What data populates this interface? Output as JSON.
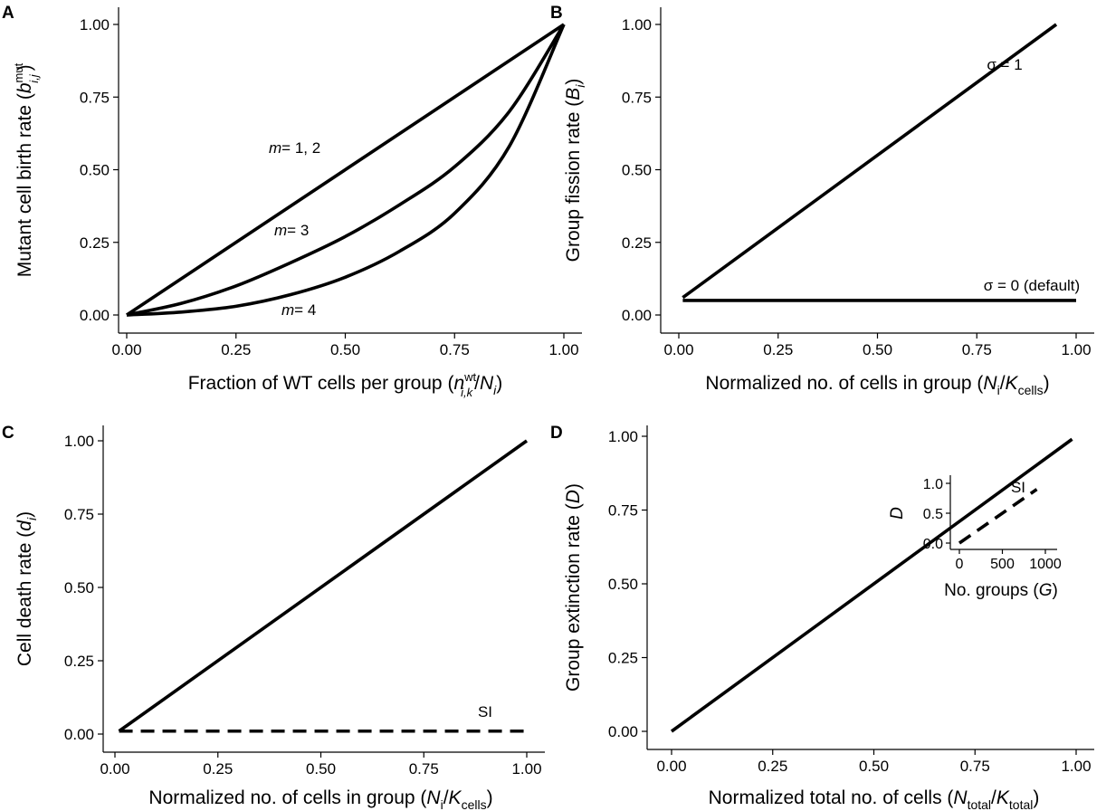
{
  "figure": {
    "panels": [
      {
        "letter": "A",
        "xlabel_parts": [
          "Fraction of WT cells per group (",
          "n",
          "wt",
          "i,k",
          "/",
          "N",
          "i",
          ")"
        ],
        "ylabel_parts": [
          "Mutant cell birth rate (",
          "b",
          "mut",
          "i,j",
          ")"
        ],
        "x_ticks": [
          "0.00",
          "0.25",
          "0.50",
          "0.75",
          "1.00"
        ],
        "y_ticks": [
          "0.00",
          "0.25",
          "0.50",
          "0.75",
          "1.00"
        ],
        "annotations": [
          {
            "italic": "m",
            "rest": "= 1, 2"
          },
          {
            "italic": "m",
            "rest": "= 3"
          },
          {
            "italic": "m",
            "rest": "= 4"
          }
        ]
      },
      {
        "letter": "B",
        "xlabel_parts": [
          "Normalized no. of cells in group (",
          "N",
          "i",
          "/",
          "K",
          "cells",
          ")"
        ],
        "ylabel_parts": [
          "Group fission rate (",
          "B",
          "i",
          ")"
        ],
        "x_ticks": [
          "0.00",
          "0.25",
          "0.50",
          "0.75",
          "1.00"
        ],
        "y_ticks": [
          "0.00",
          "0.25",
          "0.50",
          "0.75",
          "1.00"
        ],
        "annotations": [
          "σ = 1",
          "σ = 0 (default)"
        ]
      },
      {
        "letter": "C",
        "xlabel_parts": [
          "Normalized no. of cells in group (",
          "N",
          "i",
          "/",
          "K",
          "cells",
          ")"
        ],
        "ylabel_parts": [
          "Cell death rate (",
          "d",
          "i",
          ")"
        ],
        "x_ticks": [
          "0.00",
          "0.25",
          "0.50",
          "0.75",
          "1.00"
        ],
        "y_ticks": [
          "0.00",
          "0.25",
          "0.50",
          "0.75",
          "1.00"
        ],
        "annotations": [
          "SI"
        ]
      },
      {
        "letter": "D",
        "xlabel_parts": [
          "Normalized total no. of cells (",
          "N",
          "total",
          "/",
          "K",
          "total",
          ")"
        ],
        "ylabel_parts": [
          "Group extinction rate (",
          "D",
          ")"
        ],
        "x_ticks": [
          "0.00",
          "0.25",
          "0.50",
          "0.75",
          "1.00"
        ],
        "y_ticks": [
          "0.00",
          "0.25",
          "0.50",
          "0.75",
          "1.00"
        ],
        "annotations": [],
        "inset": {
          "xlabel_parts": [
            "No. groups (",
            "G",
            ")"
          ],
          "ylabel": "D",
          "x_ticks": [
            "0",
            "500",
            "1000"
          ],
          "y_ticks": [
            "0.0",
            "0.5",
            "1.0"
          ],
          "annotation": "SI"
        }
      }
    ]
  },
  "chart_data": [
    {
      "type": "line",
      "panel": "A",
      "xlabel": "Fraction of WT cells per group (n^wt_i,k / N_i)",
      "ylabel": "Mutant cell birth rate (b^mut_i,j)",
      "xlim": [
        0,
        1
      ],
      "ylim": [
        0,
        1
      ],
      "x_ticks": [
        0,
        0.25,
        0.5,
        0.75,
        1.0
      ],
      "y_ticks": [
        0,
        0.25,
        0.5,
        0.75,
        1.0
      ],
      "grid": false,
      "series": [
        {
          "name": "m = 1, 2",
          "style": "solid",
          "x": [
            0,
            0.25,
            0.5,
            0.75,
            1.0
          ],
          "y": [
            0,
            0.25,
            0.5,
            0.75,
            1.0
          ]
        },
        {
          "name": "m = 3",
          "style": "solid",
          "x": [
            0,
            0.125,
            0.25,
            0.375,
            0.5,
            0.625,
            0.75,
            0.875,
            1.0
          ],
          "y": [
            0,
            0.04,
            0.1,
            0.18,
            0.27,
            0.38,
            0.51,
            0.7,
            1.0
          ]
        },
        {
          "name": "m = 4",
          "style": "solid",
          "x": [
            0,
            0.125,
            0.25,
            0.375,
            0.5,
            0.625,
            0.75,
            0.875,
            1.0
          ],
          "y": [
            0,
            0.01,
            0.03,
            0.07,
            0.13,
            0.22,
            0.35,
            0.58,
            1.0
          ]
        }
      ]
    },
    {
      "type": "line",
      "panel": "B",
      "xlabel": "Normalized no. of cells in group (N_i / K_cells)",
      "ylabel": "Group fission rate (B_i)",
      "xlim": [
        0,
        1
      ],
      "ylim": [
        0,
        1
      ],
      "x_ticks": [
        0,
        0.25,
        0.5,
        0.75,
        1.0
      ],
      "y_ticks": [
        0,
        0.25,
        0.5,
        0.75,
        1.0
      ],
      "grid": false,
      "series": [
        {
          "name": "σ = 1",
          "style": "solid",
          "x": [
            0.01,
            0.95
          ],
          "y": [
            0.06,
            1.0
          ]
        },
        {
          "name": "σ = 0 (default)",
          "style": "solid",
          "x": [
            0.01,
            1.0
          ],
          "y": [
            0.05,
            0.05
          ]
        }
      ]
    },
    {
      "type": "line",
      "panel": "C",
      "xlabel": "Normalized no. of cells in group (N_i / K_cells)",
      "ylabel": "Cell death rate (d_i)",
      "xlim": [
        0,
        1
      ],
      "ylim": [
        0,
        1
      ],
      "x_ticks": [
        0,
        0.25,
        0.5,
        0.75,
        1.0
      ],
      "y_ticks": [
        0,
        0.25,
        0.5,
        0.75,
        1.0
      ],
      "grid": false,
      "series": [
        {
          "name": "",
          "style": "solid",
          "x": [
            0.01,
            1.0
          ],
          "y": [
            0.01,
            1.0
          ]
        },
        {
          "name": "SI",
          "style": "dashed",
          "x": [
            0.01,
            1.0
          ],
          "y": [
            0.01,
            0.01
          ]
        }
      ]
    },
    {
      "type": "line",
      "panel": "D",
      "xlabel": "Normalized total no. of cells (N_total / K_total)",
      "ylabel": "Group extinction rate (D)",
      "xlim": [
        0,
        1
      ],
      "ylim": [
        0,
        1
      ],
      "x_ticks": [
        0,
        0.25,
        0.5,
        0.75,
        1.0
      ],
      "y_ticks": [
        0,
        0.25,
        0.5,
        0.75,
        1.0
      ],
      "grid": false,
      "series": [
        {
          "name": "",
          "style": "solid",
          "x": [
            0,
            0.99
          ],
          "y": [
            0,
            0.99
          ]
        }
      ]
    },
    {
      "type": "line",
      "panel": "D-inset",
      "xlabel": "No. groups (G)",
      "ylabel": "D",
      "xlim": [
        0,
        1000
      ],
      "ylim": [
        0,
        1
      ],
      "x_ticks": [
        0,
        500,
        1000
      ],
      "y_ticks": [
        0.0,
        0.5,
        1.0
      ],
      "grid": false,
      "series": [
        {
          "name": "SI",
          "style": "dashed",
          "x": [
            0,
            900
          ],
          "y": [
            0,
            0.9
          ]
        }
      ]
    }
  ]
}
